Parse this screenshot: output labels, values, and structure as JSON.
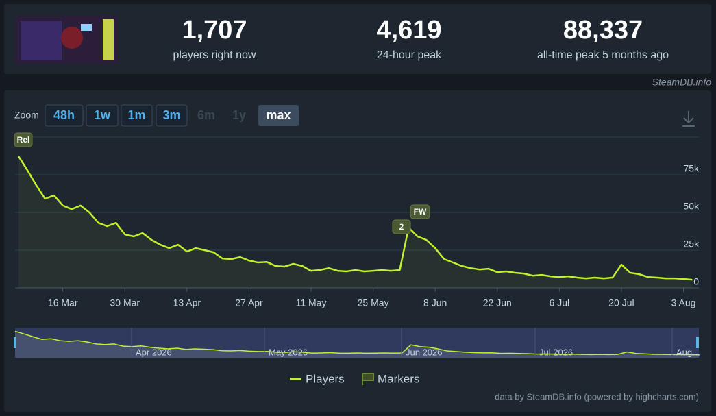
{
  "header": {
    "stats": [
      {
        "value": "1,707",
        "label": "players right now"
      },
      {
        "value": "4,619",
        "label": "24-hour peak"
      },
      {
        "value": "88,337",
        "label": "all-time peak 5 months ago"
      }
    ],
    "watermark": "SteamDB.info"
  },
  "zoom": {
    "label": "Zoom",
    "options": [
      "48h",
      "1w",
      "1m",
      "3m",
      "6m",
      "1y",
      "max"
    ]
  },
  "chart_data": {
    "type": "line",
    "categories": [
      null,
      null,
      null,
      null,
      null,
      "16 Mar",
      null,
      null,
      null,
      null,
      null,
      null,
      "30 Mar",
      null,
      null,
      null,
      null,
      null,
      null,
      "13 Apr",
      null,
      null,
      null,
      null,
      null,
      null,
      "27 Apr",
      null,
      null,
      null,
      null,
      null,
      null,
      "11 May",
      null,
      null,
      null,
      null,
      null,
      null,
      "25 May",
      null,
      null,
      null,
      null,
      null,
      null,
      "8 Jun",
      null,
      null,
      null,
      null,
      null,
      null,
      "22 Jun",
      null,
      null,
      null,
      null,
      null,
      null,
      "6 Jul",
      null,
      null,
      null,
      null,
      null,
      null,
      "20 Jul",
      null,
      null,
      null,
      null,
      null,
      null,
      "3 Aug",
      null
    ],
    "series": [
      {
        "name": "Players",
        "color": "#c3f02d",
        "values": [
          87300,
          78100,
          68100,
          59100,
          61300,
          54600,
          52200,
          54600,
          50000,
          43100,
          40900,
          43100,
          35400,
          34100,
          36300,
          31800,
          28600,
          26300,
          28600,
          24100,
          26300,
          25000,
          23600,
          19500,
          19100,
          20400,
          18100,
          16800,
          17200,
          14500,
          14100,
          15900,
          14500,
          11300,
          11800,
          13100,
          11300,
          10900,
          11800,
          10900,
          11300,
          11800,
          11300,
          11800,
          40000,
          34100,
          31800,
          26300,
          19100,
          16800,
          14500,
          13100,
          12200,
          12700,
          10400,
          10900,
          10000,
          9500,
          8100,
          8600,
          7700,
          7200,
          7700,
          6800,
          6300,
          6800,
          6300,
          6800,
          15400,
          10000,
          9100,
          7200,
          6800,
          6300,
          6300,
          5900,
          5400
        ]
      }
    ],
    "markers_name": "Markers",
    "annotations": [
      "Rel",
      "2",
      "FW"
    ],
    "ylim": [
      0,
      100000
    ],
    "yticks": [
      0,
      {
        "value": 25000,
        "label": "25k"
      },
      {
        "value": 50000,
        "label": "50k"
      },
      {
        "value": 75000,
        "label": "75k"
      }
    ],
    "grid": true,
    "navigator_labels": [
      "Apr 2026",
      "May 2026",
      "Jun 2026",
      "Jul 2026",
      "Aug…"
    ],
    "credits": "data by SteamDB.info (powered by highcharts.com)"
  }
}
